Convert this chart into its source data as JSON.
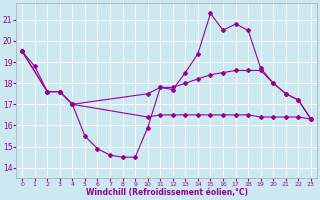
{
  "line1_x": [
    0,
    1,
    2,
    3,
    4,
    5,
    6,
    7,
    8,
    9,
    10,
    11,
    12,
    13,
    14,
    15,
    16,
    17,
    18,
    19,
    20,
    21,
    22,
    23
  ],
  "line1_y": [
    19.5,
    18.8,
    17.6,
    17.6,
    17.0,
    15.5,
    14.9,
    14.6,
    14.5,
    14.5,
    15.9,
    17.8,
    17.7,
    18.5,
    19.4,
    21.3,
    20.5,
    20.8,
    20.5,
    18.7,
    18.0,
    17.5,
    17.2,
    16.3
  ],
  "line2_x": [
    0,
    2,
    3,
    4,
    10,
    11,
    12,
    13,
    14,
    15,
    16,
    17,
    18,
    19,
    20,
    21,
    22,
    23
  ],
  "line2_y": [
    19.5,
    17.6,
    17.6,
    17.0,
    17.5,
    17.8,
    17.8,
    18.0,
    18.2,
    18.4,
    18.5,
    18.6,
    18.6,
    18.6,
    18.0,
    17.5,
    17.2,
    16.3
  ],
  "line3_x": [
    0,
    2,
    3,
    4,
    10,
    11,
    12,
    13,
    14,
    15,
    16,
    17,
    18,
    19,
    20,
    21,
    22,
    23
  ],
  "line3_y": [
    19.5,
    17.6,
    17.6,
    17.0,
    16.4,
    16.5,
    16.5,
    16.5,
    16.5,
    16.5,
    16.5,
    16.5,
    16.5,
    16.4,
    16.4,
    16.4,
    16.4,
    16.3
  ],
  "line_color": "#990099",
  "bg_color": "#cce8f0",
  "grid_color": "#ffffff",
  "ylim": [
    13.5,
    21.8
  ],
  "xlim": [
    -0.5,
    23.5
  ],
  "yticks": [
    14,
    15,
    16,
    17,
    18,
    19,
    20,
    21
  ],
  "xticks": [
    0,
    1,
    2,
    3,
    4,
    5,
    6,
    7,
    8,
    9,
    10,
    11,
    12,
    13,
    14,
    15,
    16,
    17,
    18,
    19,
    20,
    21,
    22,
    23
  ],
  "xlabel": "Windchill (Refroidissement éolien,°C)",
  "marker": "D",
  "markersize": 2,
  "linewidth": 0.8
}
